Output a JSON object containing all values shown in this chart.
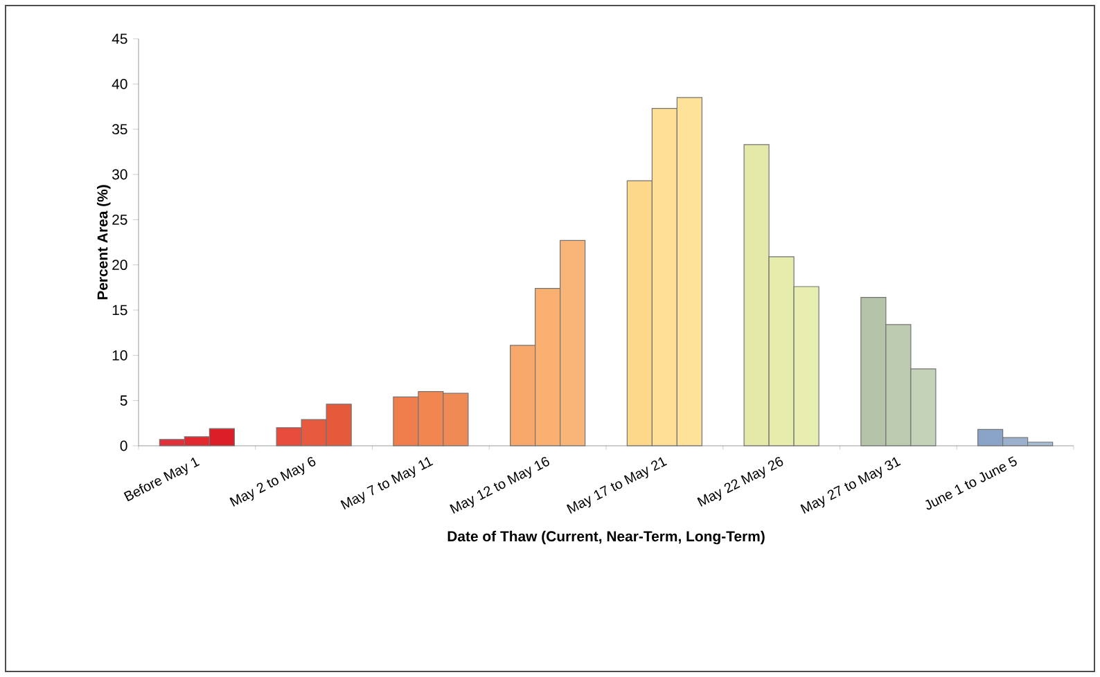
{
  "chart_data": {
    "type": "bar",
    "xlabel": "Date of Thaw (Current, Near-Term, Long-Term)",
    "ylabel": "Percent Area (%)",
    "categories": [
      "Before May 1",
      "May 2 to May 6",
      "May 7 to May 11",
      "May 12 to May 16",
      "May 17 to May 21",
      "May 22 May 26",
      "May 27 to May 31",
      "June 1 to June 5"
    ],
    "series": [
      {
        "values": [
          0.7,
          2.0,
          5.4,
          11.1,
          29.3,
          33.3,
          16.4,
          1.8
        ],
        "colors": [
          "#e0303a",
          "#e84c3d",
          "#f07e4c",
          "#f8a86a",
          "#fdd88a",
          "#e4e8a8",
          "#b5c4a8",
          "#8aa4c8"
        ]
      },
      {
        "values": [
          1.0,
          2.9,
          6.0,
          17.4,
          37.3,
          20.9,
          13.4,
          0.9
        ],
        "colors": [
          "#e02a30",
          "#e85a40",
          "#f28650",
          "#f9b070",
          "#fedf95",
          "#e6ecab",
          "#bccab0",
          "#9ab0cc"
        ]
      },
      {
        "values": [
          1.9,
          4.6,
          5.8,
          22.7,
          38.5,
          17.6,
          8.5,
          0.4
        ],
        "colors": [
          "#dc1e26",
          "#e45a3a",
          "#f08a54",
          "#f9b577",
          "#ffe29a",
          "#e8eeb0",
          "#c4d2b8",
          "#a8bcd4"
        ]
      }
    ],
    "ylim": [
      0,
      45
    ],
    "yticks": [
      0,
      5,
      10,
      15,
      20,
      25,
      30,
      35,
      40,
      45
    ]
  }
}
